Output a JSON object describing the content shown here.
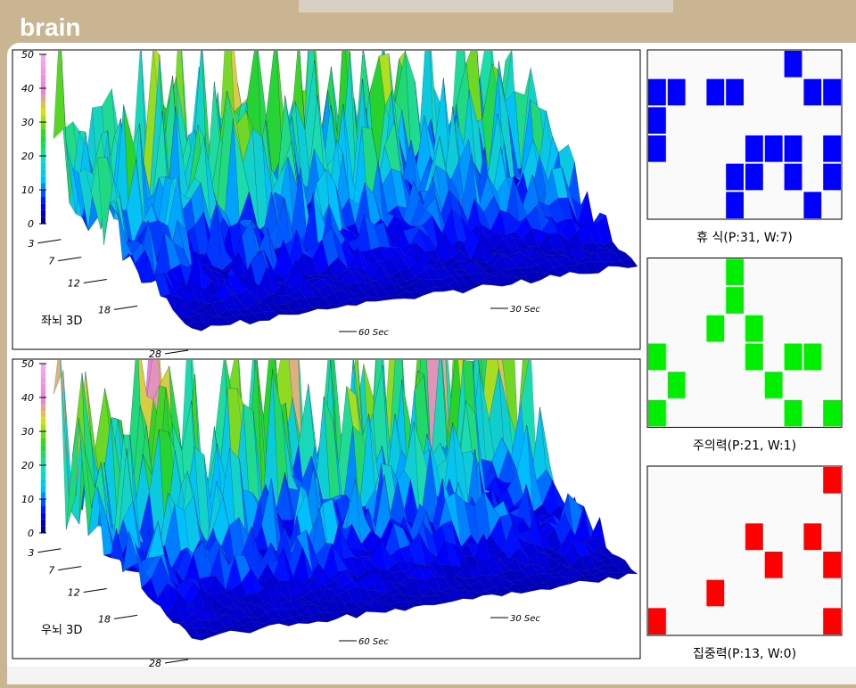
{
  "header": {
    "title": "brain"
  },
  "plots": [
    {
      "label": "좌뇌 3D"
    },
    {
      "label": "우뇌 3D"
    }
  ],
  "z_ticks": [
    50,
    40,
    30,
    20,
    10,
    0
  ],
  "depth_ticks": [
    3,
    7,
    12,
    18,
    28
  ],
  "time_ticks": [
    "30 Sec",
    "60 Sec"
  ],
  "grid": {
    "cols": 10,
    "rows": 6
  },
  "panels": [
    {
      "caption": "휴 식(P:31, W:7)",
      "color": "#0000ff",
      "cells": [
        [
          7,
          0
        ],
        [
          0,
          1
        ],
        [
          1,
          1
        ],
        [
          3,
          1
        ],
        [
          4,
          1
        ],
        [
          8,
          1
        ],
        [
          9,
          1
        ],
        [
          0,
          2
        ],
        [
          0,
          3
        ],
        [
          5,
          3
        ],
        [
          6,
          3
        ],
        [
          7,
          3
        ],
        [
          9,
          3
        ],
        [
          4,
          4
        ],
        [
          5,
          4
        ],
        [
          7,
          4
        ],
        [
          9,
          4
        ],
        [
          4,
          5
        ],
        [
          8,
          5
        ]
      ]
    },
    {
      "caption": "주의력(P:21, W:1)",
      "color": "#00ee00",
      "cells": [
        [
          4,
          0
        ],
        [
          4,
          1
        ],
        [
          3,
          2
        ],
        [
          5,
          2
        ],
        [
          0,
          3
        ],
        [
          5,
          3
        ],
        [
          7,
          3
        ],
        [
          8,
          3
        ],
        [
          1,
          4
        ],
        [
          6,
          4
        ],
        [
          0,
          5
        ],
        [
          7,
          5
        ],
        [
          9,
          5
        ]
      ]
    },
    {
      "caption": "집중력(P:13, W:0)",
      "color": "#ff0000",
      "cells": [
        [
          9,
          0
        ],
        [
          5,
          2
        ],
        [
          8,
          2
        ],
        [
          6,
          3
        ],
        [
          9,
          3
        ],
        [
          3,
          4
        ],
        [
          0,
          5
        ],
        [
          9,
          5
        ]
      ]
    }
  ]
}
